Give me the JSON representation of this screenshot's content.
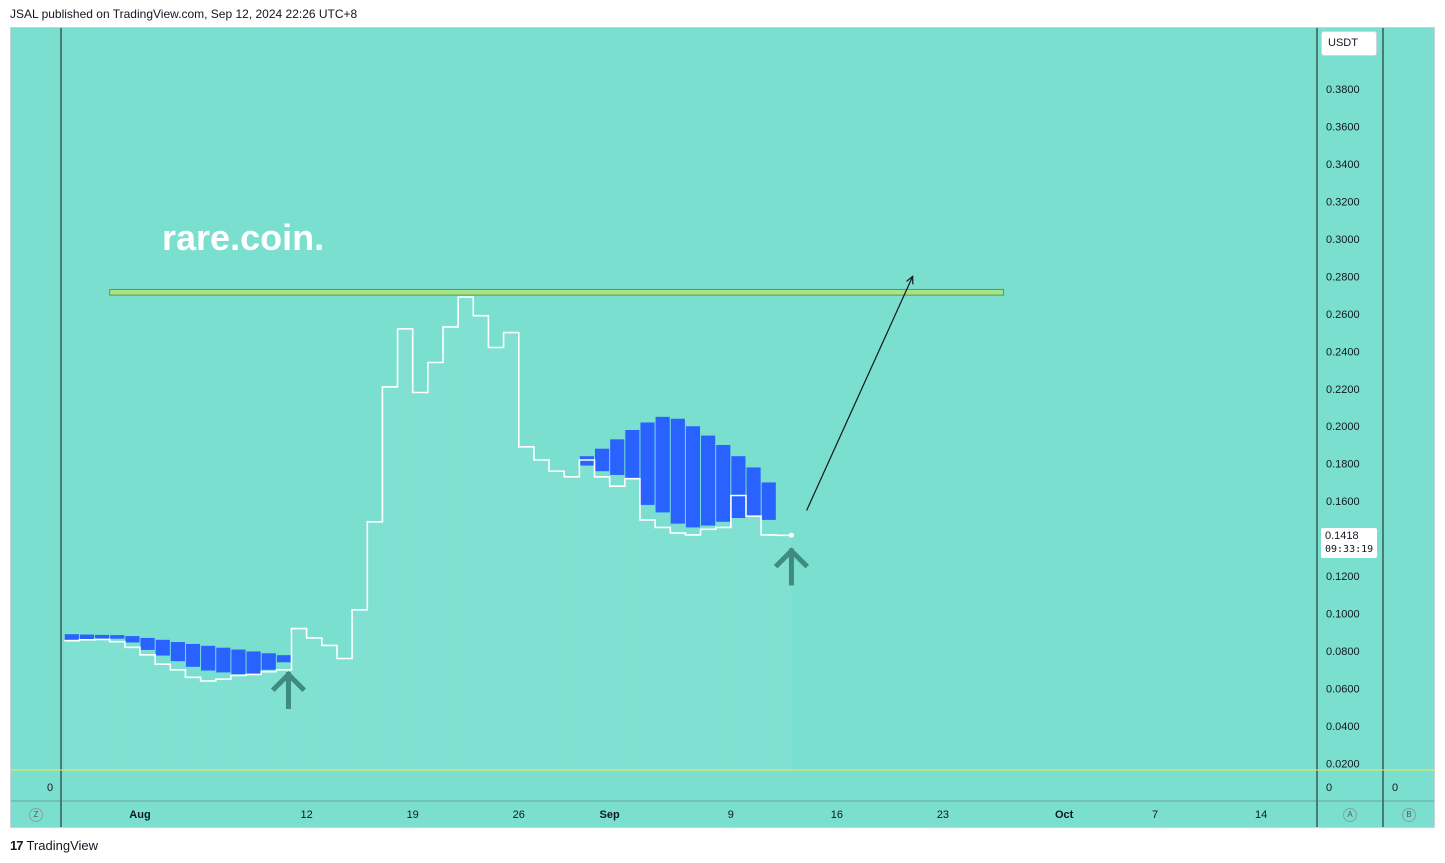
{
  "header": {
    "published_by": "JSAL published on TradingView.com, Sep 12, 2024 22:26 UTC+8"
  },
  "footer": {
    "logo_text": "TradingView"
  },
  "toolbar": {
    "currency_label": "USDT",
    "left_zero": "0",
    "right_zero_a": "0",
    "right_zero_b": "0",
    "btn_z": "Z",
    "btn_a": "A",
    "btn_b": "B"
  },
  "price_tag": {
    "price": "0.1418",
    "countdown": "09:33:19"
  },
  "colors": {
    "background": "#7adfcf",
    "candle_blue": "#2962ff",
    "line_white": "#ffffff",
    "resistance_green": "#a6e38a",
    "arrow_teal": "#3f8b82",
    "zero_line": "#f5e84a"
  },
  "chart_data": {
    "type": "line",
    "title": "rare.coin.",
    "xlabel": "",
    "ylabel": "",
    "ylim": [
      0.02,
      0.4
    ],
    "y_ticks": [
      "0.3800",
      "0.3600",
      "0.3400",
      "0.3200",
      "0.3000",
      "0.2800",
      "0.2600",
      "0.2400",
      "0.2200",
      "0.2000",
      "0.1800",
      "0.1600",
      "0.1418",
      "0.1200",
      "0.1000",
      "0.0800",
      "0.0600",
      "0.0400",
      "0.0200"
    ],
    "x_ticks": [
      {
        "label": "Aug",
        "day": 0
      },
      {
        "label": "12",
        "day": 11
      },
      {
        "label": "19",
        "day": 18
      },
      {
        "label": "26",
        "day": 25
      },
      {
        "label": "Sep",
        "day": 31
      },
      {
        "label": "9",
        "day": 39
      },
      {
        "label": "16",
        "day": 46
      },
      {
        "label": "23",
        "day": 53
      },
      {
        "label": "Oct",
        "day": 61
      },
      {
        "label": "7",
        "day": 67
      },
      {
        "label": "14",
        "day": 74
      }
    ],
    "x_range_days": [
      -5.2,
      78.7
    ],
    "price_series": {
      "name": "Price",
      "start_day": -5,
      "values": [
        0.0855,
        0.086,
        0.0862,
        0.085,
        0.082,
        0.078,
        0.073,
        0.07,
        0.066,
        0.064,
        0.065,
        0.067,
        0.0675,
        0.069,
        0.07,
        0.092,
        0.087,
        0.083,
        0.076,
        0.102,
        0.149,
        0.221,
        0.252,
        0.218,
        0.234,
        0.253,
        0.269,
        0.259,
        0.242,
        0.25,
        0.189,
        0.182,
        0.176,
        0.173,
        0.182,
        0.173,
        0.168,
        0.172,
        0.15,
        0.146,
        0.143,
        0.142,
        0.145,
        0.146,
        0.163,
        0.152,
        0.142,
        0.1418
      ],
      "last_marker": 0.1418
    },
    "cloud_series": {
      "name": "Cloud band",
      "start_day": -5,
      "top": [
        0.089,
        0.0888,
        0.0886,
        0.0885,
        0.088,
        0.087,
        0.086,
        0.0848,
        0.0838,
        0.0828,
        0.0818,
        0.0808,
        0.0798,
        0.0788,
        0.0778,
        null,
        null,
        null,
        null,
        null,
        null,
        null,
        null,
        null,
        null,
        null,
        null,
        null,
        null,
        null,
        null,
        null,
        null,
        null,
        0.184,
        0.188,
        0.193,
        0.198,
        0.202,
        0.205,
        0.204,
        0.2,
        0.195,
        0.19,
        0.184,
        0.178,
        0.17
      ],
      "bottom": [
        0.086,
        0.0862,
        0.0864,
        0.0866,
        0.0846,
        0.0806,
        0.0776,
        0.0746,
        0.0716,
        0.0696,
        0.0686,
        0.0676,
        0.068,
        0.07,
        0.074,
        null,
        null,
        null,
        null,
        null,
        null,
        null,
        null,
        null,
        null,
        null,
        null,
        null,
        null,
        null,
        null,
        null,
        null,
        null,
        0.179,
        0.176,
        0.174,
        0.172,
        0.158,
        0.154,
        0.148,
        0.146,
        0.147,
        0.149,
        0.151,
        0.152,
        0.15
      ]
    },
    "annotations": [
      {
        "type": "resistance_zone",
        "from_day": -2,
        "to_day": 57,
        "y_low": 0.27,
        "y_high": 0.273
      },
      {
        "type": "trend_arrow",
        "from": {
          "day": 44.0,
          "y": 0.155
        },
        "to": {
          "day": 51.0,
          "y": 0.28
        }
      },
      {
        "type": "up_arrow",
        "day": 9.8,
        "y": 0.06
      },
      {
        "type": "up_arrow",
        "day": 43.0,
        "y": 0.126
      }
    ],
    "grid": false,
    "legend": "none"
  }
}
